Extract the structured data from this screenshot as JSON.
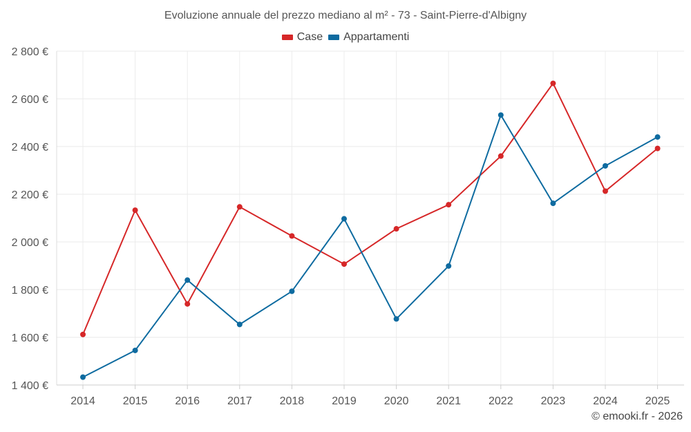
{
  "chart_data": {
    "type": "line",
    "title": "Evoluzione annuale del prezzo mediano al m² - 73 - Saint-Pierre-d'Albigny",
    "categories": [
      "2014",
      "2015",
      "2016",
      "2017",
      "2018",
      "2019",
      "2020",
      "2021",
      "2022",
      "2023",
      "2024",
      "2025"
    ],
    "series": [
      {
        "name": "Case",
        "color": "#d62728",
        "values": [
          1612,
          2133,
          1740,
          2147,
          2025,
          1907,
          2055,
          2156,
          2360,
          2665,
          2213,
          2392
        ]
      },
      {
        "name": "Appartamenti",
        "color": "#0e6ba0",
        "values": [
          1433,
          1545,
          1840,
          1654,
          1793,
          2097,
          1677,
          1899,
          2532,
          2162,
          2319,
          2440
        ]
      }
    ],
    "ylim": [
      1400,
      2800
    ],
    "yticks": [
      1400,
      1600,
      1800,
      2000,
      2200,
      2400,
      2600,
      2800
    ],
    "ytick_labels": [
      "1 400 €",
      "1 600 €",
      "1 800 €",
      "2 000 €",
      "2 200 €",
      "2 400 €",
      "2 600 €",
      "2 800 €"
    ],
    "xlabel": "",
    "ylabel": "",
    "grid": true,
    "legend_position": "top-center"
  },
  "credit": "© emooki.fr - 2026"
}
